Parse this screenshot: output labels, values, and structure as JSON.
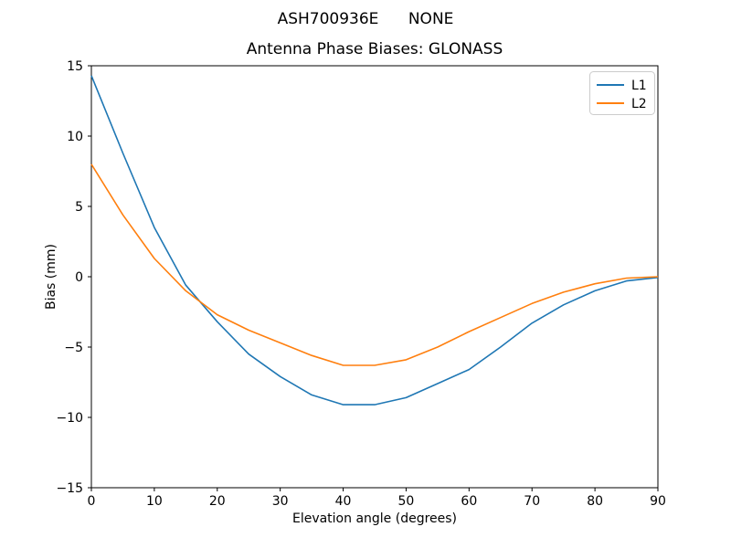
{
  "figure": {
    "suptitle": "ASH700936E      NONE",
    "axes_title": "Antenna Phase Biases: GLONASS",
    "xlabel": "Elevation angle (degrees)",
    "ylabel": "Bias (mm)",
    "background": "#ffffff",
    "spine_color": "#000000"
  },
  "chart_data": {
    "type": "line",
    "title": "Antenna Phase Biases: GLONASS",
    "suptitle": "ASH700936E      NONE",
    "xlabel": "Elevation angle (degrees)",
    "ylabel": "Bias (mm)",
    "xlim": [
      0,
      90
    ],
    "ylim": [
      -15,
      15
    ],
    "grid": false,
    "xticks": [
      0,
      10,
      20,
      30,
      40,
      50,
      60,
      70,
      80,
      90
    ],
    "xticklabels": [
      "0",
      "10",
      "20",
      "30",
      "40",
      "50",
      "60",
      "70",
      "80",
      "90"
    ],
    "yticks": [
      -15,
      -10,
      -5,
      0,
      5,
      10,
      15
    ],
    "yticklabels": [
      "−15",
      "−10",
      "−5",
      "0",
      "5",
      "10",
      "15"
    ],
    "legend": {
      "position": "upper right",
      "entries": [
        "L1",
        "L2"
      ]
    },
    "x": [
      0,
      5,
      10,
      15,
      20,
      25,
      30,
      35,
      40,
      45,
      50,
      55,
      60,
      65,
      70,
      75,
      80,
      85,
      90
    ],
    "series": [
      {
        "name": "L1",
        "color": "#1f77b4",
        "values": [
          14.3,
          8.8,
          3.5,
          -0.6,
          -3.2,
          -5.5,
          -7.1,
          -8.4,
          -9.1,
          -9.1,
          -8.6,
          -7.6,
          -6.6,
          -5.0,
          -3.3,
          -2.0,
          -1.0,
          -0.3,
          -0.05
        ]
      },
      {
        "name": "L2",
        "color": "#ff7f0e",
        "values": [
          8.0,
          4.4,
          1.3,
          -1.0,
          -2.7,
          -3.8,
          -4.7,
          -5.6,
          -6.3,
          -6.3,
          -5.9,
          -5.0,
          -3.9,
          -2.9,
          -1.9,
          -1.1,
          -0.5,
          -0.1,
          0.0
        ]
      }
    ]
  }
}
